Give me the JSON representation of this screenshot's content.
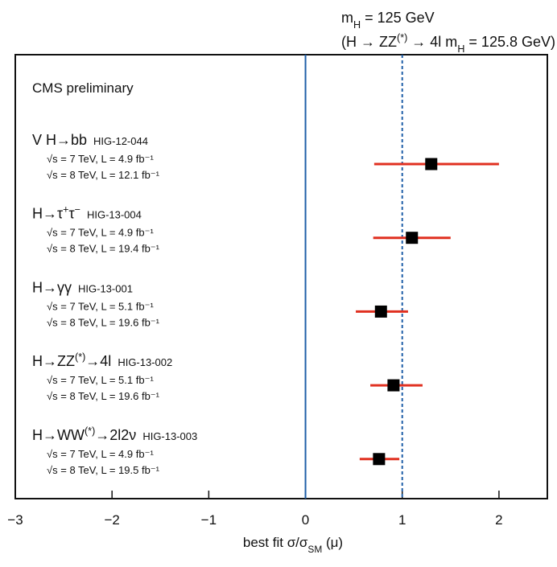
{
  "chart_data": {
    "type": "forest",
    "annotation": [
      [
        {
          "text": "m"
        },
        {
          "text": "H",
          "shift": "sub"
        },
        {
          "text": " = 125 GeV"
        }
      ],
      [
        {
          "text": "(H → ZZ"
        },
        {
          "text": "(*)",
          "shift": "sup"
        },
        {
          "text": " → 4l m"
        },
        {
          "text": "H",
          "shift": "sub"
        },
        {
          "text": " = 125.8 GeV)"
        }
      ]
    ],
    "inner_title": "CMS preliminary",
    "xlabel": [
      {
        "text": "best fit σ/σ"
      },
      {
        "text": "SM",
        "shift": "sub"
      },
      {
        "text": " (μ)"
      }
    ],
    "groups": [
      {
        "label": [
          {
            "text": "V H→bb"
          }
        ],
        "code": "HIG-12-044",
        "conditions": [
          "√s = 7 TeV, L = 4.9 fb⁻¹",
          "√s = 8 TeV, L = 12.1 fb⁻¹"
        ]
      },
      {
        "label": [
          {
            "text": "H→τ"
          },
          {
            "text": "+",
            "shift": "sup"
          },
          {
            "text": "τ"
          },
          {
            "text": "−",
            "shift": "sup"
          }
        ],
        "code": "HIG-13-004",
        "conditions": [
          "√s = 7 TeV, L = 4.9 fb⁻¹",
          "√s = 8 TeV, L = 19.4 fb⁻¹"
        ]
      },
      {
        "label": [
          {
            "text": "H→γγ"
          }
        ],
        "code": "HIG-13-001",
        "conditions": [
          "√s = 7 TeV, L = 5.1 fb⁻¹",
          "√s = 8 TeV, L = 19.6 fb⁻¹"
        ]
      },
      {
        "label": [
          {
            "text": "H→ZZ"
          },
          {
            "text": "(*)",
            "shift": "sup"
          },
          {
            "text": "→4l"
          }
        ],
        "code": "HIG-13-002",
        "conditions": [
          "√s = 7 TeV, L = 5.1 fb⁻¹",
          "√s = 8 TeV, L = 19.6 fb⁻¹"
        ]
      },
      {
        "label": [
          {
            "text": "H→WW"
          },
          {
            "text": "(*)",
            "shift": "sup"
          },
          {
            "text": "→2l2ν"
          }
        ],
        "code": "HIG-13-003",
        "conditions": [
          "√s = 7 TeV, L = 4.9 fb⁻¹",
          "√s = 8 TeV, L = 19.5 fb⁻¹"
        ]
      }
    ],
    "values": [
      1.3,
      1.1,
      0.78,
      0.91,
      0.76
    ],
    "lower": [
      0.71,
      0.7,
      0.52,
      0.67,
      0.56
    ],
    "upper": [
      2.0,
      1.5,
      1.06,
      1.21,
      0.97
    ],
    "marker_color": "#000000",
    "error_color": "#e03020",
    "reference_lines": [
      {
        "value": 0,
        "color": "#1f5fa8",
        "style": "solid"
      },
      {
        "value": 1,
        "color": "#1f5fa8",
        "style": "dashed"
      }
    ],
    "xlim": [
      -3,
      2.5
    ],
    "xticks": [
      {
        "value": -3,
        "label": "−3"
      },
      {
        "value": -2,
        "label": "−2"
      },
      {
        "value": -1,
        "label": "−1"
      },
      0,
      1,
      2
    ]
  }
}
